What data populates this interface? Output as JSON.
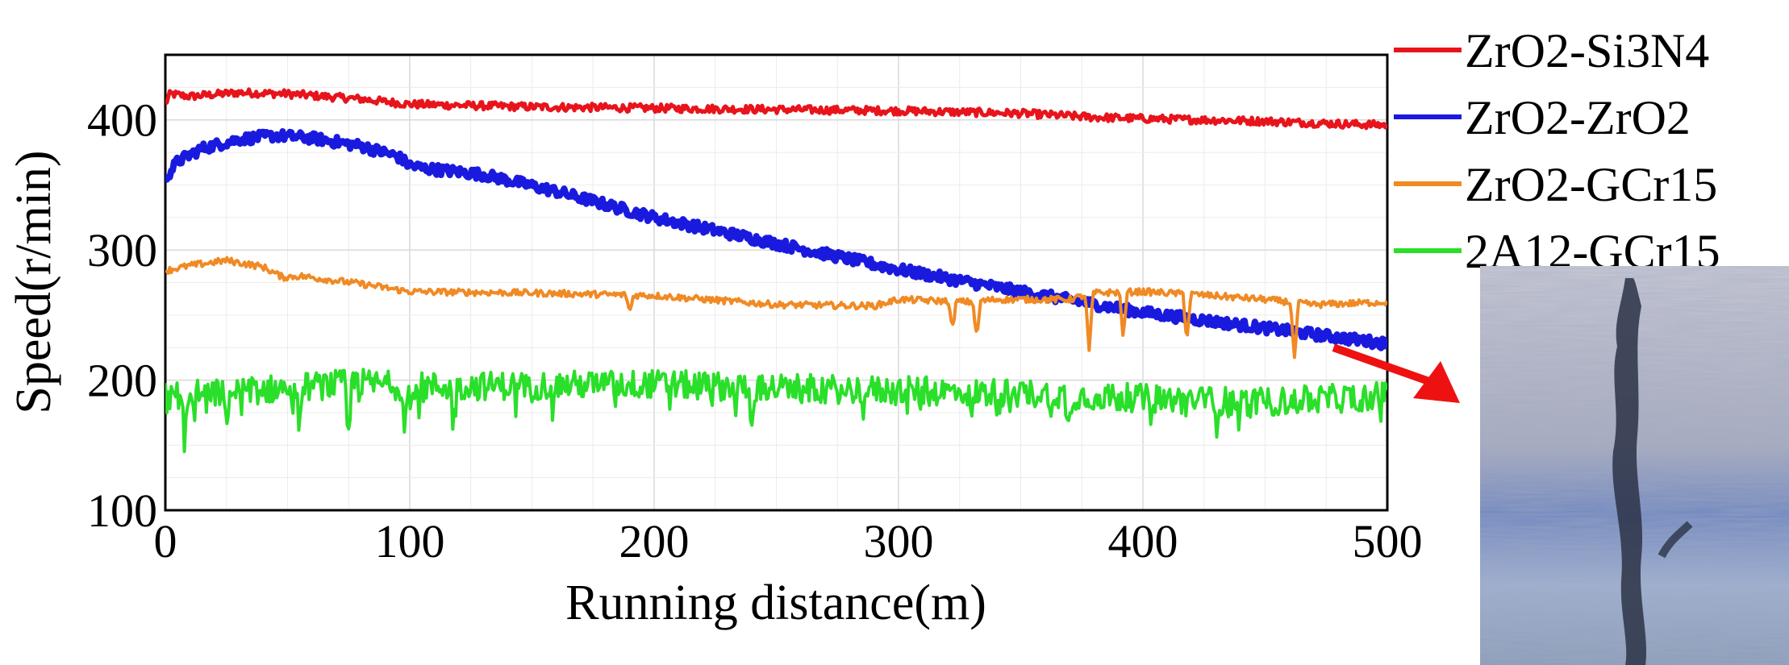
{
  "chart_data": {
    "type": "line",
    "title": "",
    "xlabel": "Running distance(m)",
    "ylabel": "Speed(r/min)",
    "xlim": [
      0,
      500
    ],
    "ylim": [
      100,
      450
    ],
    "xticks": [
      0,
      100,
      200,
      300,
      400,
      500
    ],
    "yticks": [
      100,
      200,
      300,
      400
    ],
    "grid": true,
    "legend_position": "outside-top-right",
    "series": [
      {
        "name": "ZrO2-Si3N4",
        "color": "#e8141c",
        "stroke": 5,
        "noise": 3,
        "x": [
          0,
          2,
          10,
          30,
          50,
          80,
          100,
          150,
          200,
          250,
          300,
          350,
          380,
          400,
          450,
          480,
          500
        ],
        "y": [
          412,
          420,
          418,
          421,
          420,
          416,
          412,
          410,
          409,
          408,
          407,
          405,
          402,
          401,
          399,
          397,
          396
        ],
        "dips": []
      },
      {
        "name": "ZrO2-ZrO2",
        "color": "#1a1adf",
        "stroke": 8,
        "noise": 4,
        "x": [
          0,
          5,
          15,
          30,
          45,
          60,
          80,
          95,
          100,
          105,
          130,
          160,
          200,
          250,
          300,
          350,
          400,
          450,
          500
        ],
        "y": [
          355,
          368,
          378,
          385,
          388,
          386,
          380,
          372,
          365,
          363,
          358,
          345,
          325,
          305,
          285,
          268,
          252,
          240,
          228
        ],
        "dips": []
      },
      {
        "name": "ZrO2-GCr15",
        "color": "#f08a24",
        "stroke": 4,
        "noise": 2.5,
        "x": [
          0,
          10,
          25,
          40,
          48,
          55,
          80,
          100,
          150,
          200,
          250,
          290,
          300,
          330,
          340,
          370,
          380,
          400,
          420,
          450,
          470,
          500
        ],
        "y": [
          284,
          288,
          292,
          287,
          279,
          280,
          274,
          268,
          267,
          265,
          258,
          257,
          262,
          260,
          262,
          262,
          267,
          268,
          266,
          262,
          258,
          260
        ],
        "dips": [
          [
            190,
            252
          ],
          [
            322,
            238
          ],
          [
            332,
            232
          ],
          [
            378,
            222
          ],
          [
            392,
            232
          ],
          [
            418,
            230
          ],
          [
            462,
            215
          ]
        ]
      },
      {
        "name": "2A12-GCr15",
        "color": "#2adf2a",
        "stroke": 4,
        "noise": 11,
        "x": [
          0,
          20,
          50,
          80,
          100,
          150,
          200,
          250,
          300,
          350,
          400,
          450,
          500
        ],
        "y": [
          188,
          190,
          194,
          198,
          195,
          196,
          197,
          194,
          192,
          190,
          186,
          183,
          188
        ],
        "dips": [
          [
            8,
            155
          ],
          [
            25,
            160
          ],
          [
            55,
            162
          ],
          [
            75,
            162
          ],
          [
            98,
            165
          ],
          [
            118,
            168
          ],
          [
            240,
            170
          ],
          [
            330,
            172
          ],
          [
            370,
            166
          ],
          [
            430,
            170
          ]
        ]
      }
    ],
    "annotation": {
      "type": "arrow",
      "from_data": [
        478,
        225
      ],
      "color": "#ee1111",
      "target": "micrograph-inset"
    },
    "inset_image": {
      "description_name": "wear-surface-micrograph"
    }
  }
}
